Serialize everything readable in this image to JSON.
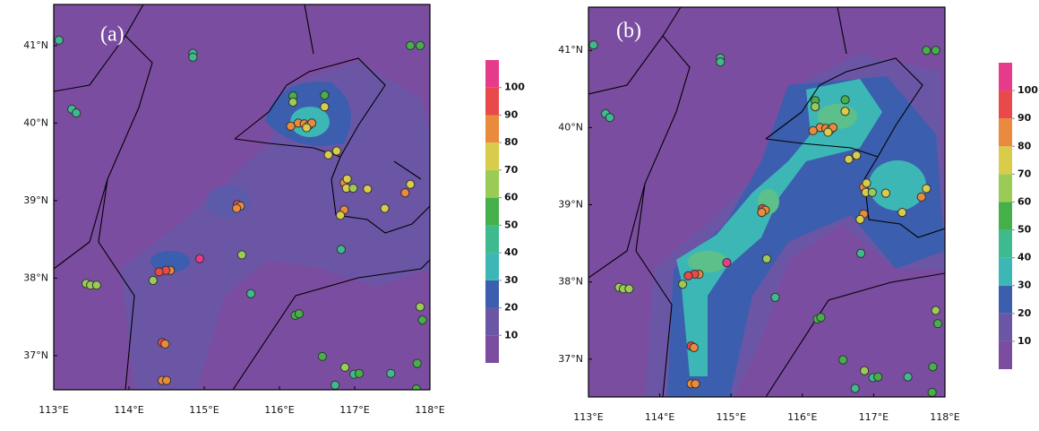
{
  "panels": [
    {
      "label": "(a)",
      "xlim": [
        113,
        118
      ],
      "ylim": [
        36.56,
        41.53
      ],
      "xticks": [
        {
          "value": 113,
          "label": "113°E"
        },
        {
          "value": 114,
          "label": "114°E"
        },
        {
          "value": 115,
          "label": "115°E"
        },
        {
          "value": 116,
          "label": "116°E"
        },
        {
          "value": 117,
          "label": "117°E"
        },
        {
          "value": 118,
          "label": "118°E"
        }
      ],
      "yticks": [
        {
          "value": 37,
          "label": "37°N"
        },
        {
          "value": 38,
          "label": "38°N"
        },
        {
          "value": 39,
          "label": "39°N"
        },
        {
          "value": 40,
          "label": "40°N"
        },
        {
          "value": 41,
          "label": "41°N"
        }
      ],
      "colorbar": {
        "lim": [
          0,
          110
        ],
        "ticks": [
          10,
          20,
          30,
          40,
          50,
          60,
          70,
          80,
          90,
          100
        ],
        "colors": [
          "#7b4da0",
          "#6b56a6",
          "#3c5eae",
          "#3db7b6",
          "#3fb98e",
          "#45b04a",
          "#9acb55",
          "#d8cc4a",
          "#ea8a3c",
          "#e9494a",
          "#e63b8a"
        ]
      }
    },
    {
      "label": "(b)",
      "xlim": [
        113,
        118
      ],
      "ylim": [
        36.51,
        41.56
      ],
      "xticks": [
        {
          "value": 113,
          "label": "113°E"
        },
        {
          "value": 114,
          "label": "114°E"
        },
        {
          "value": 115,
          "label": "115°E"
        },
        {
          "value": 116,
          "label": "116°E"
        },
        {
          "value": 117,
          "label": "117°E"
        },
        {
          "value": 118,
          "label": "118°E"
        }
      ],
      "yticks": [
        {
          "value": 37,
          "label": "37°N"
        },
        {
          "value": 38,
          "label": "38°N"
        },
        {
          "value": 39,
          "label": "39°N"
        },
        {
          "value": 40,
          "label": "40°N"
        },
        {
          "value": 41,
          "label": "41°N"
        }
      ],
      "colorbar": {
        "lim": [
          0,
          110
        ],
        "ticks": [
          10,
          20,
          30,
          40,
          50,
          60,
          70,
          80,
          90,
          100
        ],
        "colors": [
          "#7b4da0",
          "#6b56a6",
          "#3c5eae",
          "#3db7b6",
          "#3fb98e",
          "#45b04a",
          "#9acb55",
          "#d8cc4a",
          "#ea8a3c",
          "#e9494a",
          "#e63b8a"
        ]
      }
    }
  ],
  "stations": [
    {
      "lon": 113.07,
      "lat": 41.07,
      "value": 45
    },
    {
      "lon": 114.85,
      "lat": 40.9,
      "value": 40
    },
    {
      "lon": 114.85,
      "lat": 40.85,
      "value": 40
    },
    {
      "lon": 113.24,
      "lat": 40.18,
      "value": 40
    },
    {
      "lon": 113.3,
      "lat": 40.13,
      "value": 40
    },
    {
      "lon": 117.74,
      "lat": 41.0,
      "value": 55
    },
    {
      "lon": 117.87,
      "lat": 41.0,
      "value": 55
    },
    {
      "lon": 116.18,
      "lat": 40.35,
      "value": 55
    },
    {
      "lon": 116.18,
      "lat": 40.27,
      "value": 65
    },
    {
      "lon": 116.6,
      "lat": 40.36,
      "value": 55
    },
    {
      "lon": 116.6,
      "lat": 40.21,
      "value": 70
    },
    {
      "lon": 116.25,
      "lat": 40.0,
      "value": 85
    },
    {
      "lon": 116.15,
      "lat": 39.96,
      "value": 85
    },
    {
      "lon": 116.33,
      "lat": 39.99,
      "value": 80
    },
    {
      "lon": 116.39,
      "lat": 39.97,
      "value": 75
    },
    {
      "lon": 116.43,
      "lat": 40.0,
      "value": 85
    },
    {
      "lon": 116.36,
      "lat": 39.94,
      "value": 75
    },
    {
      "lon": 116.65,
      "lat": 39.59,
      "value": 70
    },
    {
      "lon": 116.76,
      "lat": 39.64,
      "value": 70
    },
    {
      "lon": 116.86,
      "lat": 39.23,
      "value": 85
    },
    {
      "lon": 116.9,
      "lat": 39.28,
      "value": 75
    },
    {
      "lon": 116.89,
      "lat": 39.16,
      "value": 70
    },
    {
      "lon": 116.98,
      "lat": 39.16,
      "value": 65
    },
    {
      "lon": 117.17,
      "lat": 39.15,
      "value": 70
    },
    {
      "lon": 116.86,
      "lat": 38.88,
      "value": 85
    },
    {
      "lon": 116.81,
      "lat": 38.81,
      "value": 75
    },
    {
      "lon": 117.4,
      "lat": 38.9,
      "value": 70
    },
    {
      "lon": 117.67,
      "lat": 39.1,
      "value": 85
    },
    {
      "lon": 117.74,
      "lat": 39.21,
      "value": 75
    },
    {
      "lon": 115.44,
      "lat": 38.95,
      "value": 90
    },
    {
      "lon": 115.48,
      "lat": 38.93,
      "value": 85
    },
    {
      "lon": 115.43,
      "lat": 38.9,
      "value": 85
    },
    {
      "lon": 114.94,
      "lat": 38.25,
      "value": 100
    },
    {
      "lon": 114.55,
      "lat": 38.1,
      "value": 85
    },
    {
      "lon": 114.49,
      "lat": 38.1,
      "value": 90
    },
    {
      "lon": 114.4,
      "lat": 38.08,
      "value": 90
    },
    {
      "lon": 114.32,
      "lat": 37.97,
      "value": 65
    },
    {
      "lon": 115.5,
      "lat": 38.3,
      "value": 65
    },
    {
      "lon": 115.62,
      "lat": 37.8,
      "value": 40
    },
    {
      "lon": 113.43,
      "lat": 37.93,
      "value": 65
    },
    {
      "lon": 113.49,
      "lat": 37.91,
      "value": 60
    },
    {
      "lon": 113.57,
      "lat": 37.91,
      "value": 65
    },
    {
      "lon": 114.44,
      "lat": 37.17,
      "value": 90
    },
    {
      "lon": 114.48,
      "lat": 37.15,
      "value": 85
    },
    {
      "lon": 114.44,
      "lat": 36.68,
      "value": 85
    },
    {
      "lon": 114.5,
      "lat": 36.68,
      "value": 85
    },
    {
      "lon": 116.21,
      "lat": 37.52,
      "value": 55
    },
    {
      "lon": 116.26,
      "lat": 37.54,
      "value": 50
    },
    {
      "lon": 116.82,
      "lat": 38.37,
      "value": 40
    },
    {
      "lon": 116.57,
      "lat": 36.99,
      "value": 55
    },
    {
      "lon": 116.87,
      "lat": 36.85,
      "value": 65
    },
    {
      "lon": 116.99,
      "lat": 36.76,
      "value": 45
    },
    {
      "lon": 117.06,
      "lat": 36.77,
      "value": 55
    },
    {
      "lon": 116.74,
      "lat": 36.62,
      "value": 45
    },
    {
      "lon": 117.48,
      "lat": 36.77,
      "value": 40
    },
    {
      "lon": 117.83,
      "lat": 36.9,
      "value": 55
    },
    {
      "lon": 117.87,
      "lat": 37.63,
      "value": 65
    },
    {
      "lon": 117.9,
      "lat": 37.46,
      "value": 55
    },
    {
      "lon": 117.82,
      "lat": 36.57,
      "value": 50
    }
  ]
}
